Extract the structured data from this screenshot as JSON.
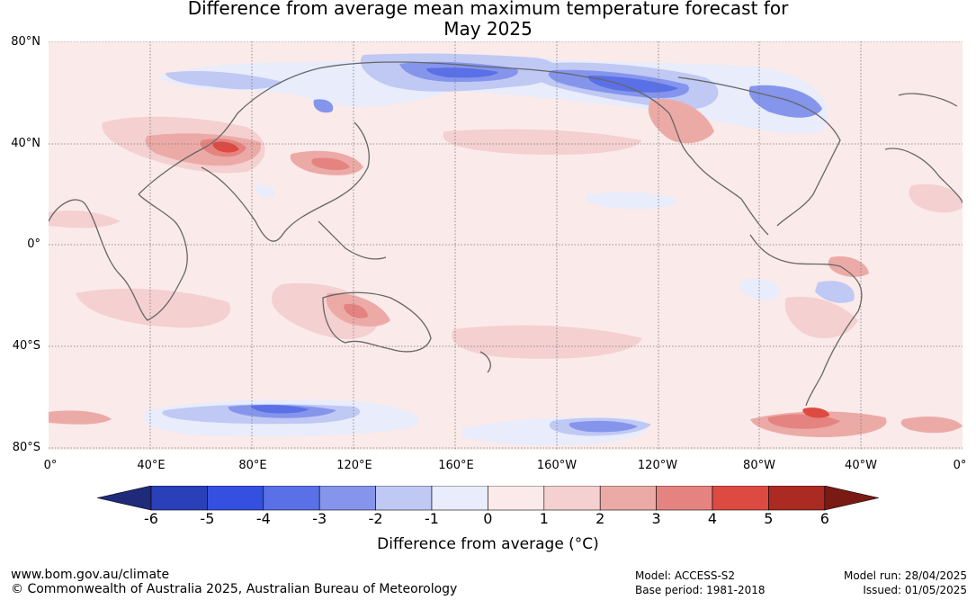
{
  "title_line1": "Difference from average mean maximum temperature forecast for",
  "title_line2": "May 2025",
  "lat_labels": [
    "80°N",
    "40°N",
    "0°",
    "40°S",
    "80°S"
  ],
  "lon_labels": [
    "0°",
    "40°E",
    "80°E",
    "120°E",
    "160°E",
    "160°W",
    "120°W",
    "80°W",
    "40°W",
    "0°"
  ],
  "colorbar": {
    "ticks": [
      "-6",
      "-5",
      "-4",
      "-3",
      "-2",
      "-1",
      "0",
      "1",
      "2",
      "3",
      "4",
      "5",
      "6"
    ],
    "colors": [
      "#1f2a7a",
      "#2a40b8",
      "#3550e0",
      "#5a70e6",
      "#8595ec",
      "#c0c8f4",
      "#e8ecfb",
      "#fbeaea",
      "#f4d0d0",
      "#ecaaa7",
      "#e58380",
      "#dc4a42",
      "#ab2a22",
      "#7a1a14"
    ],
    "label": "Difference from average (°C)"
  },
  "footer": {
    "website": "www.bom.gov.au/climate",
    "copyright": "© Commonwealth of Australia 2025, Australian Bureau of Meteorology",
    "model": "Model: ACCESS-S2",
    "base_period": "Base period: 1981-2018",
    "model_run": "Model run: 28/04/2025",
    "issued": "Issued: 01/05/2025"
  }
}
